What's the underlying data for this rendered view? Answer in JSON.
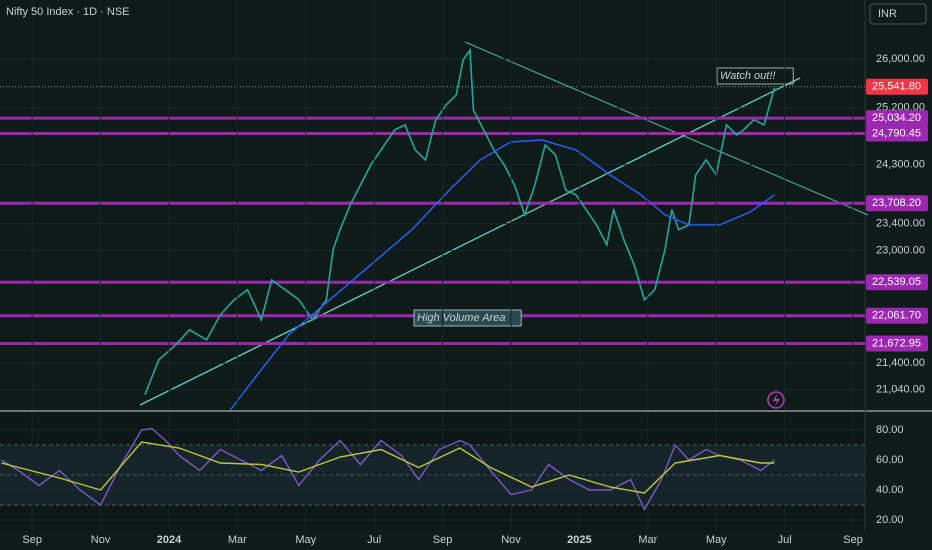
{
  "header": {
    "title": "Nifty 50 Index · 1D · NSE",
    "currency": "INR"
  },
  "chart_data": [
    {
      "type": "line",
      "log_scale": true,
      "xlim": [
        -0.94,
        24.35
      ],
      "ylim": [
        20770,
        27000
      ],
      "yticks": [
        {
          "value": 26000,
          "label": "26,000.00"
        },
        {
          "value": 25200,
          "label": "25,200.00"
        },
        {
          "value": 24300,
          "label": "24,300.00"
        },
        {
          "value": 23400,
          "label": "23,400.00"
        },
        {
          "value": 23000,
          "label": "23,000.00"
        },
        {
          "value": 21400,
          "label": "21,400.00"
        },
        {
          "value": 21040,
          "label": "21,040.00"
        }
      ],
      "series": [
        {
          "color": "#26a69a",
          "x": [
            3.3,
            3.7,
            4.2,
            4.6,
            5.1,
            5.5,
            5.9,
            6.3,
            6.7,
            7.0,
            7.4,
            7.8,
            8.2,
            8.6,
            8.8,
            9.0,
            9.3,
            9.6,
            9.9,
            10.3,
            10.6,
            10.9,
            11.2,
            11.5,
            11.8,
            12.1,
            12.4,
            12.6,
            12.8,
            12.9,
            13.2,
            13.5,
            13.8,
            14.1,
            14.4,
            14.7,
            15.0,
            15.3,
            15.6,
            15.9,
            16.2,
            16.5,
            16.8,
            17.0,
            17.3,
            17.6,
            17.9,
            18.2,
            18.5,
            18.7,
            18.9,
            19.2,
            19.4,
            19.7,
            20.0,
            20.3,
            20.6,
            20.8,
            21.1,
            21.4,
            21.7
          ],
          "values": [
            20974,
            21447,
            21655,
            21863,
            21723,
            22074,
            22287,
            22430,
            22004,
            22573,
            22430,
            22287,
            22004,
            22287,
            23010,
            23309,
            23683,
            23988,
            24297,
            24609,
            24846,
            24926,
            24531,
            24375,
            25007,
            25246,
            25410,
            25983,
            26150,
            25165,
            24846,
            24531,
            24297,
            23988,
            23533,
            23988,
            24609,
            24453,
            23910,
            23834,
            23608,
            23382,
            23085,
            23608,
            23158,
            22792,
            22287,
            22430,
            23010,
            23608,
            23309,
            23382,
            24141,
            24375,
            24141,
            24926,
            24768,
            24846,
            25007,
            24926,
            25524
          ]
        },
        {
          "color": "#2962ff",
          "x": [
            5.8,
            6.7,
            7.5,
            8.7,
            9.9,
            11.1,
            12.2,
            13.1,
            14.0,
            14.9,
            15.9,
            16.9,
            17.8,
            18.5,
            19.2,
            20.1,
            21.0,
            21.7
          ],
          "values": [
            20774,
            21313,
            21793,
            22287,
            22792,
            23309,
            23910,
            24375,
            24656,
            24687,
            24531,
            24141,
            23834,
            23533,
            23382,
            23382,
            23577,
            23834
          ]
        }
      ],
      "levels": [
        {
          "value": 25034.2,
          "label": "25,034.20"
        },
        {
          "value": 24790.45,
          "label": "24,790.45"
        },
        {
          "value": 23708.2,
          "label": "23,708.20"
        },
        {
          "value": 22539.05,
          "label": "22,539.05"
        },
        {
          "value": 22061.7,
          "label": "22,061.70"
        },
        {
          "value": 21672.95,
          "label": "21,672.95"
        }
      ],
      "level_color": "#9c27b0",
      "last_price": {
        "value": 25541.8,
        "label": "25,541.80",
        "color": "#f23645"
      },
      "annotations": [
        "Watch out!!",
        "High Volume Area"
      ]
    },
    {
      "type": "line",
      "xlim": [
        -0.94,
        24.35
      ],
      "ylim": [
        13.3,
        92
      ],
      "yticks": [
        {
          "value": 80,
          "label": "80.00"
        },
        {
          "value": 60,
          "label": "60.00"
        },
        {
          "value": 40,
          "label": "40.00"
        },
        {
          "value": 20,
          "label": "20.00"
        }
      ],
      "bands": [
        70,
        50,
        30
      ],
      "xticks": [
        {
          "value": 0,
          "label": "Sep"
        },
        {
          "value": 2,
          "label": "Nov"
        },
        {
          "value": 4,
          "label": "2024"
        },
        {
          "value": 6,
          "label": "Mar"
        },
        {
          "value": 8,
          "label": "May"
        },
        {
          "value": 10,
          "label": "Jul"
        },
        {
          "value": 12,
          "label": "Sep"
        },
        {
          "value": 14,
          "label": "Nov"
        },
        {
          "value": 16,
          "label": "2025"
        },
        {
          "value": 18,
          "label": "Mar"
        },
        {
          "value": 20,
          "label": "May"
        },
        {
          "value": 22,
          "label": "Jul"
        },
        {
          "value": 24,
          "label": "Sep"
        }
      ],
      "series": [
        {
          "color": "#7e57c2",
          "x": [
            -0.9,
            -0.4,
            0.2,
            0.8,
            1.4,
            2.0,
            2.6,
            3.2,
            3.5,
            3.9,
            4.3,
            4.9,
            5.5,
            6.1,
            6.7,
            7.3,
            7.8,
            8.4,
            9.0,
            9.6,
            10.2,
            10.8,
            11.3,
            11.9,
            12.5,
            12.8,
            13.4,
            14.0,
            14.6,
            15.1,
            15.7,
            16.3,
            16.9,
            17.5,
            17.9,
            18.4,
            18.8,
            19.2,
            19.7,
            20.1,
            20.7,
            21.3,
            21.7
          ],
          "values": [
            60,
            53,
            43,
            53,
            40,
            30,
            57,
            80,
            81,
            73,
            63,
            53,
            67,
            60,
            53,
            63,
            43,
            60,
            73,
            57,
            73,
            63,
            47,
            67,
            73,
            70,
            53,
            37,
            40,
            57,
            47,
            40,
            40,
            47,
            27,
            47,
            70,
            60,
            67,
            63,
            60,
            53,
            60
          ]
        },
        {
          "color": "#c0ca33",
          "x": [
            -0.9,
            0.8,
            2.0,
            3.2,
            4.3,
            5.5,
            6.7,
            7.8,
            9.0,
            10.2,
            11.3,
            12.5,
            13.4,
            14.6,
            15.7,
            16.9,
            17.9,
            18.8,
            20.1,
            21.3,
            21.7
          ],
          "values": [
            58,
            48,
            40,
            72,
            68,
            58,
            57,
            52,
            62,
            67,
            55,
            68,
            55,
            42,
            50,
            42,
            38,
            58,
            63,
            58,
            58
          ]
        }
      ]
    }
  ]
}
